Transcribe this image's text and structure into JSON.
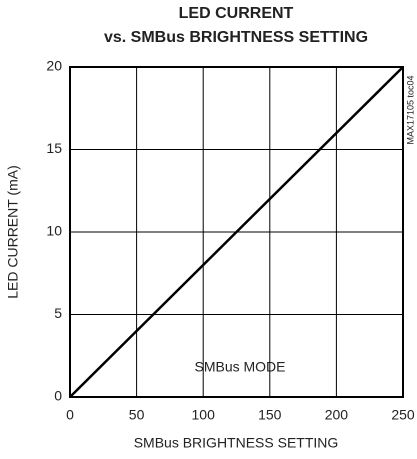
{
  "chart_data": {
    "type": "line",
    "title": "LED CURRENT",
    "subtitle": "vs. SMBus BRIGHTNESS SETTING",
    "xlabel": "SMBus BRIGHTNESS SETTING",
    "ylabel": "LED CURRENT (mA)",
    "annotations": [
      "SMBus MODE",
      "MAX17105 toc04"
    ],
    "x": [
      0,
      250
    ],
    "series": [
      {
        "name": "SMBus MODE",
        "color": "#000000",
        "values": [
          0,
          20
        ]
      }
    ],
    "xlim": [
      0,
      250
    ],
    "xticks": [
      0,
      50,
      100,
      150,
      200,
      250
    ],
    "ylim": [
      0,
      20
    ],
    "yticks": [
      0,
      5,
      10,
      15,
      20
    ],
    "grid": true
  }
}
